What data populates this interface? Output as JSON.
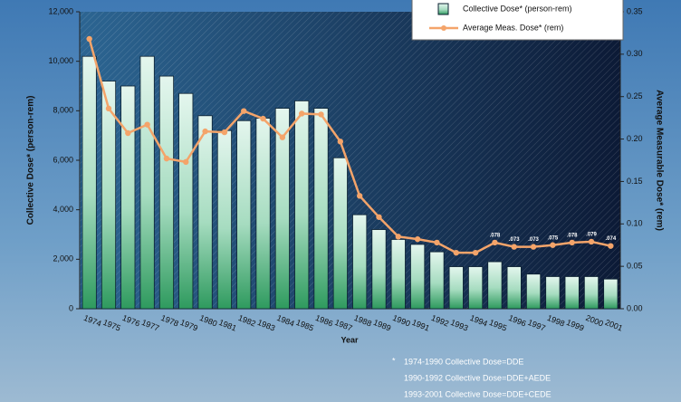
{
  "chart_data": {
    "type": "bar_line",
    "x_label": "Year",
    "y_label": "Collective Dose* (person-rem)",
    "y2_label": "Average Measurable Dose* (rem)",
    "categories": [
      "1974",
      "1975",
      "1976",
      "1977",
      "1978",
      "1979",
      "1980",
      "1981",
      "1982",
      "1983",
      "1984",
      "1985",
      "1986",
      "1987",
      "1988",
      "1989",
      "1990",
      "1991",
      "1992",
      "1993",
      "1994",
      "1995",
      "1996",
      "1997",
      "1998",
      "1999",
      "2000",
      "2001"
    ],
    "series": [
      {
        "name": "Collective Dose* (person-rem)",
        "type": "bar",
        "color": "#2e9a5e",
        "values": [
          10200,
          9200,
          9000,
          10200,
          9400,
          8700,
          7800,
          7200,
          7600,
          7700,
          8100,
          8400,
          8100,
          6100,
          3800,
          3200,
          2800,
          2600,
          2300,
          1700,
          1700,
          1900,
          1700,
          1400,
          1300,
          1300,
          1300,
          1200
        ]
      },
      {
        "name": "Average Meas. Dose* (rem)",
        "type": "line",
        "axis": "y2",
        "color": "#f4a46a",
        "values": [
          0.318,
          0.236,
          0.207,
          0.217,
          0.177,
          0.173,
          0.209,
          0.208,
          0.233,
          0.224,
          0.202,
          0.23,
          0.229,
          0.197,
          0.133,
          0.108,
          0.085,
          0.082,
          0.078,
          0.066,
          0.066,
          0.078,
          0.073,
          0.073,
          0.075,
          0.078,
          0.079,
          0.074
        ],
        "value_labels": [
          null,
          null,
          null,
          null,
          null,
          null,
          null,
          null,
          null,
          null,
          null,
          null,
          null,
          null,
          null,
          null,
          null,
          null,
          null,
          null,
          null,
          ".078",
          ".073",
          ".073",
          ".075",
          ".078",
          ".079",
          ".074"
        ]
      }
    ],
    "ylim": [
      0,
      12000
    ],
    "yticks": [
      {
        "value": 0,
        "label": "0"
      },
      {
        "value": 2000,
        "label": "2,000"
      },
      {
        "value": 4000,
        "label": "4,000"
      },
      {
        "value": 6000,
        "label": "6,000"
      },
      {
        "value": 8000,
        "label": "8,000"
      },
      {
        "value": 10000,
        "label": "10,000"
      },
      {
        "value": 12000,
        "label": "12,000"
      }
    ],
    "y2lim": [
      0,
      0.35
    ],
    "y2ticks": [
      {
        "value": 0,
        "label": "0.00"
      },
      {
        "value": 0.05,
        "label": "0.05"
      },
      {
        "value": 0.1,
        "label": "0.10"
      },
      {
        "value": 0.15,
        "label": "0.15"
      },
      {
        "value": 0.2,
        "label": "0.20"
      },
      {
        "value": 0.25,
        "label": "0.25"
      },
      {
        "value": 0.3,
        "label": "0.30"
      },
      {
        "value": 0.35,
        "label": "0.35"
      }
    ],
    "legend": "top-right",
    "annotations": [
      "*",
      "1974-1990 Collective Dose=DDE",
      "1990-1992 Collective Dose=DDE+AEDE",
      "1993-2001 Collective Dose=DDE+CEDE"
    ]
  }
}
